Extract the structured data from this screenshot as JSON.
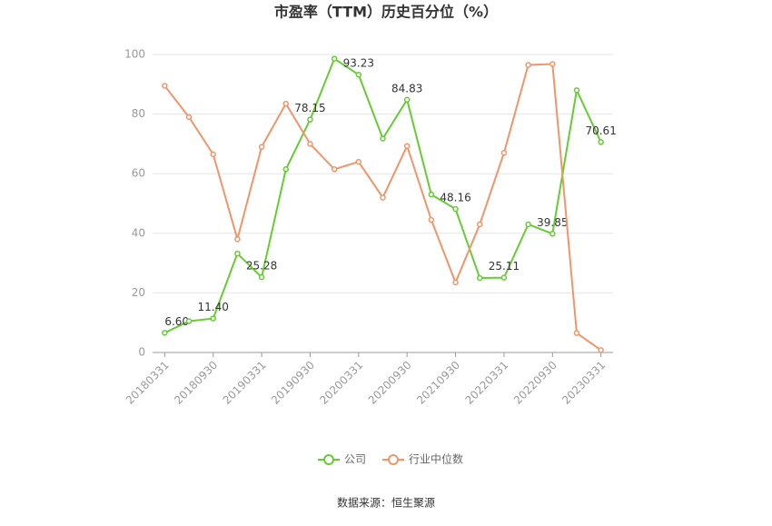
{
  "chart_data": {
    "type": "line",
    "title": "市盈率（TTM）历史百分位（%）",
    "categories": [
      "20180331",
      null,
      "20180930",
      null,
      "20190331",
      null,
      "20190930",
      null,
      "20200331",
      null,
      "20200930",
      null,
      "20210930",
      null,
      "20220331",
      null,
      "20220930",
      null,
      "20230331"
    ],
    "series": [
      {
        "name": "公司",
        "color": "#66cc33",
        "values": [
          6.6,
          10.5,
          11.4,
          33.2,
          25.28,
          61.5,
          78.15,
          98.6,
          93.23,
          71.8,
          84.83,
          53,
          48.16,
          25,
          25.11,
          43,
          39.85,
          88,
          70.61
        ],
        "value_labels": [
          "6.60",
          null,
          "11.40",
          null,
          "25.28",
          null,
          "78.15",
          null,
          "93.23",
          null,
          "84.83",
          null,
          "48.16",
          null,
          "25.11",
          null,
          "39.85",
          null,
          "70.61"
        ]
      },
      {
        "name": "行业中位数",
        "color": "#f0956a",
        "values": [
          89.5,
          79,
          66.5,
          38,
          69,
          83.5,
          70,
          61.5,
          64,
          52,
          69.3,
          44.5,
          23.5,
          43,
          67,
          96.5,
          96.8,
          6.5,
          0.8
        ]
      }
    ],
    "ylim": [
      0,
      100
    ],
    "yticks": [
      0,
      20,
      40,
      60,
      80,
      100
    ],
    "grid": true,
    "legend": "bottom",
    "source": "数据来源：恒生聚源"
  }
}
